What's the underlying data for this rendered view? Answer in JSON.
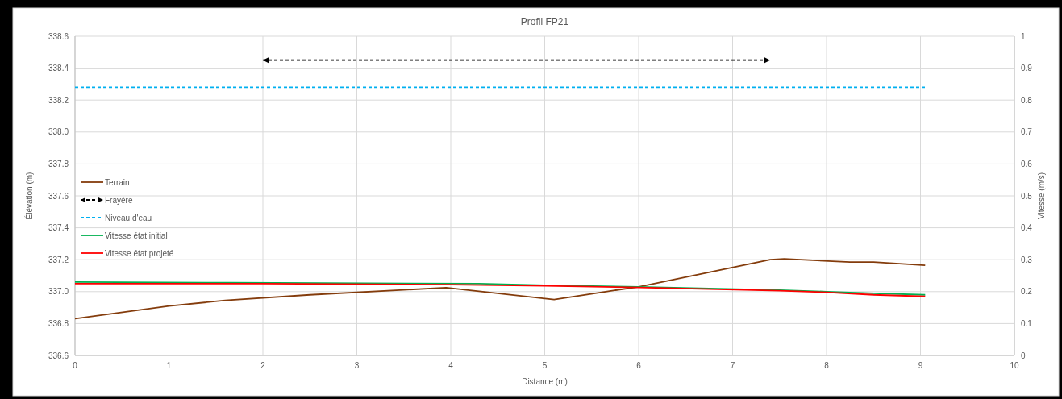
{
  "chart_data": {
    "type": "line",
    "title": "Profil FP21",
    "xlabel": "Distance (m)",
    "ylabel": "Élévation (m)",
    "y2label": "Vitesse (m/s)",
    "xlim": [
      0,
      10
    ],
    "xticks": [
      0,
      1,
      2,
      3,
      4,
      5,
      6,
      7,
      8,
      9,
      10
    ],
    "ylim": [
      336.6,
      338.6
    ],
    "yticks": [
      {
        "value": 336.6,
        "label": "336.6"
      },
      {
        "value": 336.8,
        "label": "336.8"
      },
      {
        "value": 337,
        "label": "337.0"
      },
      {
        "value": 337.2,
        "label": "337.2"
      },
      {
        "value": 337.4,
        "label": "337.4"
      },
      {
        "value": 337.6,
        "label": "337.6"
      },
      {
        "value": 337.8,
        "label": "337.8"
      },
      {
        "value": 338,
        "label": "338.0"
      },
      {
        "value": 338.2,
        "label": "338.2"
      },
      {
        "value": 338.4,
        "label": "338.4"
      },
      {
        "value": 338.6,
        "label": "338.6"
      }
    ],
    "y2lim": [
      0,
      1
    ],
    "y2ticks": [
      0,
      0.1,
      0.2,
      0.3,
      0.4,
      0.5,
      0.6,
      0.7,
      0.8,
      0.9,
      1
    ],
    "grid": true,
    "legend": "left",
    "line_style": "solid",
    "marker": "none",
    "series": [
      {
        "name": "Terrain",
        "color": "#843c0c",
        "x": [
          0,
          1,
          1.6,
          2.5,
          3.95,
          5.1,
          5.65,
          6,
          7.4,
          7.55,
          8.25,
          8.5,
          9.05
        ],
        "values": [
          336.83,
          336.91,
          336.945,
          336.98,
          337.025,
          336.95,
          337.0,
          337.03,
          337.2,
          337.205,
          337.185,
          337.185,
          337.165
        ]
      },
      {
        "name": "Frayère",
        "color": "#000000",
        "line_style": "dashed",
        "marker": "triangle",
        "x": [
          2,
          7.4
        ],
        "values": [
          338.45,
          338.45
        ]
      },
      {
        "name": "Niveau d'eau",
        "color": "#00b0f0",
        "line_style": "dashed",
        "x": [
          0,
          9.05
        ],
        "values": [
          338.28,
          338.28
        ]
      },
      {
        "name": "Vitesse état initial",
        "color": "#00b050",
        "axis": "y2",
        "x": [
          0,
          1.65,
          4.3,
          5,
          6,
          7.5,
          8,
          8.5,
          9.05
        ],
        "values": [
          0.23,
          0.228,
          0.225,
          0.22,
          0.215,
          0.205,
          0.2,
          0.195,
          0.19
        ]
      },
      {
        "name": "Vitesse état projeté",
        "color": "#ff0000",
        "axis": "y2",
        "x": [
          0,
          2,
          4,
          5,
          6,
          7.5,
          8,
          8.5,
          9.05
        ],
        "values": [
          0.225,
          0.225,
          0.222,
          0.218,
          0.213,
          0.203,
          0.198,
          0.19,
          0.185
        ]
      }
    ]
  }
}
